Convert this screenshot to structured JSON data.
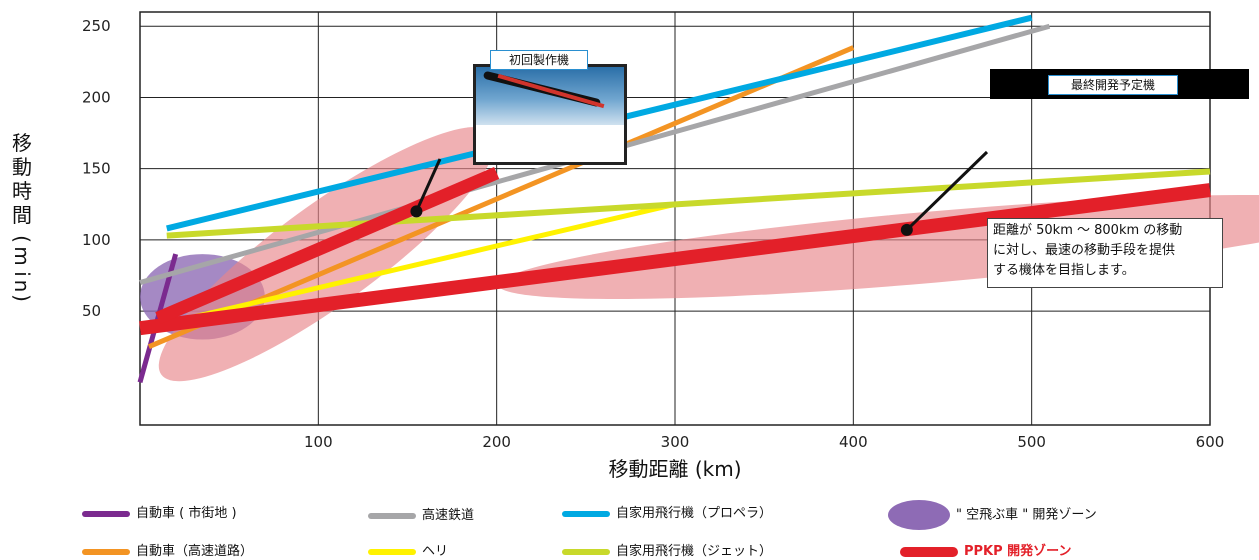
{
  "chart_data": {
    "type": "line",
    "xlabel": "移動距離 (km)",
    "ylabel": "移動時間（min）",
    "xlim": [
      0,
      600
    ],
    "ylim": [
      -30,
      260
    ],
    "x_ticks": [
      "100",
      "200",
      "300",
      "400",
      "500",
      "600"
    ],
    "y_ticks": [
      "50",
      "100",
      "150",
      "200",
      "250"
    ],
    "grid": true,
    "series": [
      {
        "name": "自動車 ( 市街地 )",
        "color": "#7b2a8f",
        "width": 5,
        "points": [
          [
            0,
            0
          ],
          [
            20,
            90
          ]
        ]
      },
      {
        "name": "自動車（高速道路）",
        "color": "#f39423",
        "width": 5,
        "points": [
          [
            5,
            25
          ],
          [
            400,
            235
          ]
        ]
      },
      {
        "name": "高速鉄道",
        "color": "#a6a6a8",
        "width": 5,
        "points": [
          [
            0,
            70
          ],
          [
            510,
            250
          ]
        ]
      },
      {
        "name": "ヘリ",
        "color": "#fff200",
        "width": 5,
        "points": [
          [
            10,
            40
          ],
          [
            300,
            125
          ]
        ]
      },
      {
        "name": "自家用飛行機（プロペラ）",
        "color": "#00a9e2",
        "width": 6,
        "points": [
          [
            15,
            108
          ],
          [
            500,
            256
          ]
        ]
      },
      {
        "name": "自家用飛行機（ジェット）",
        "color": "#c8d92b",
        "width": 6,
        "points": [
          [
            15,
            103
          ],
          [
            600,
            148
          ]
        ]
      },
      {
        "name": "PPKP 開発ゾーン",
        "color": "#e32029",
        "width": 14,
        "points": [
          [
            0,
            38
          ],
          [
            600,
            135
          ]
        ]
      },
      {
        "name": "",
        "color": "#e32029",
        "width": 13,
        "points": [
          [
            10,
            45
          ],
          [
            200,
            147
          ]
        ]
      }
    ],
    "zones": [
      {
        "name": "\" 空飛ぶ車 \" 開発ゾーン",
        "color": "#8e6bb5",
        "opacity": 0.8,
        "cx": 35,
        "cy": 60,
        "rx": 35,
        "ry": 30
      },
      {
        "name": "PPKP 開発ゾーン",
        "color": "#e8858b",
        "opacity": 0.65,
        "cx": 105,
        "cy": 90,
        "rx": 115,
        "ry": 35,
        "rotate": -36
      },
      {
        "name": "PPKP 開発ゾーン",
        "color": "#e8858b",
        "opacity": 0.65,
        "cx": 445,
        "cy": 95,
        "rx": 245,
        "ry": 25,
        "rotate": -5
      }
    ],
    "markers": [
      [
        155,
        120
      ],
      [
        430,
        107
      ]
    ]
  },
  "callouts": {
    "first_model": "初回製作機",
    "final_model": "最終開発予定機",
    "note_lines": [
      "距離が 50km ～ 800km の移動",
      "に対し、最速の移動手段を提供",
      "する機体を目指します。"
    ]
  },
  "legend": [
    {
      "label": "自動車 ( 市街地 )",
      "color": "#7b2a8f"
    },
    {
      "label": "高速鉄道",
      "color": "#a6a6a8"
    },
    {
      "label": "自家用飛行機（プロペラ）",
      "color": "#00a9e2"
    },
    {
      "label": "\" 空飛ぶ車 \" 開発ゾーン",
      "color": "#8e6bb5"
    },
    {
      "label": "自動車（高速道路）",
      "color": "#f39423"
    },
    {
      "label": "ヘリ",
      "color": "#fff200"
    },
    {
      "label": "自家用飛行機（ジェット）",
      "color": "#c8d92b"
    },
    {
      "label": "PPKP 開発ゾーン",
      "color": "#e32029"
    }
  ]
}
